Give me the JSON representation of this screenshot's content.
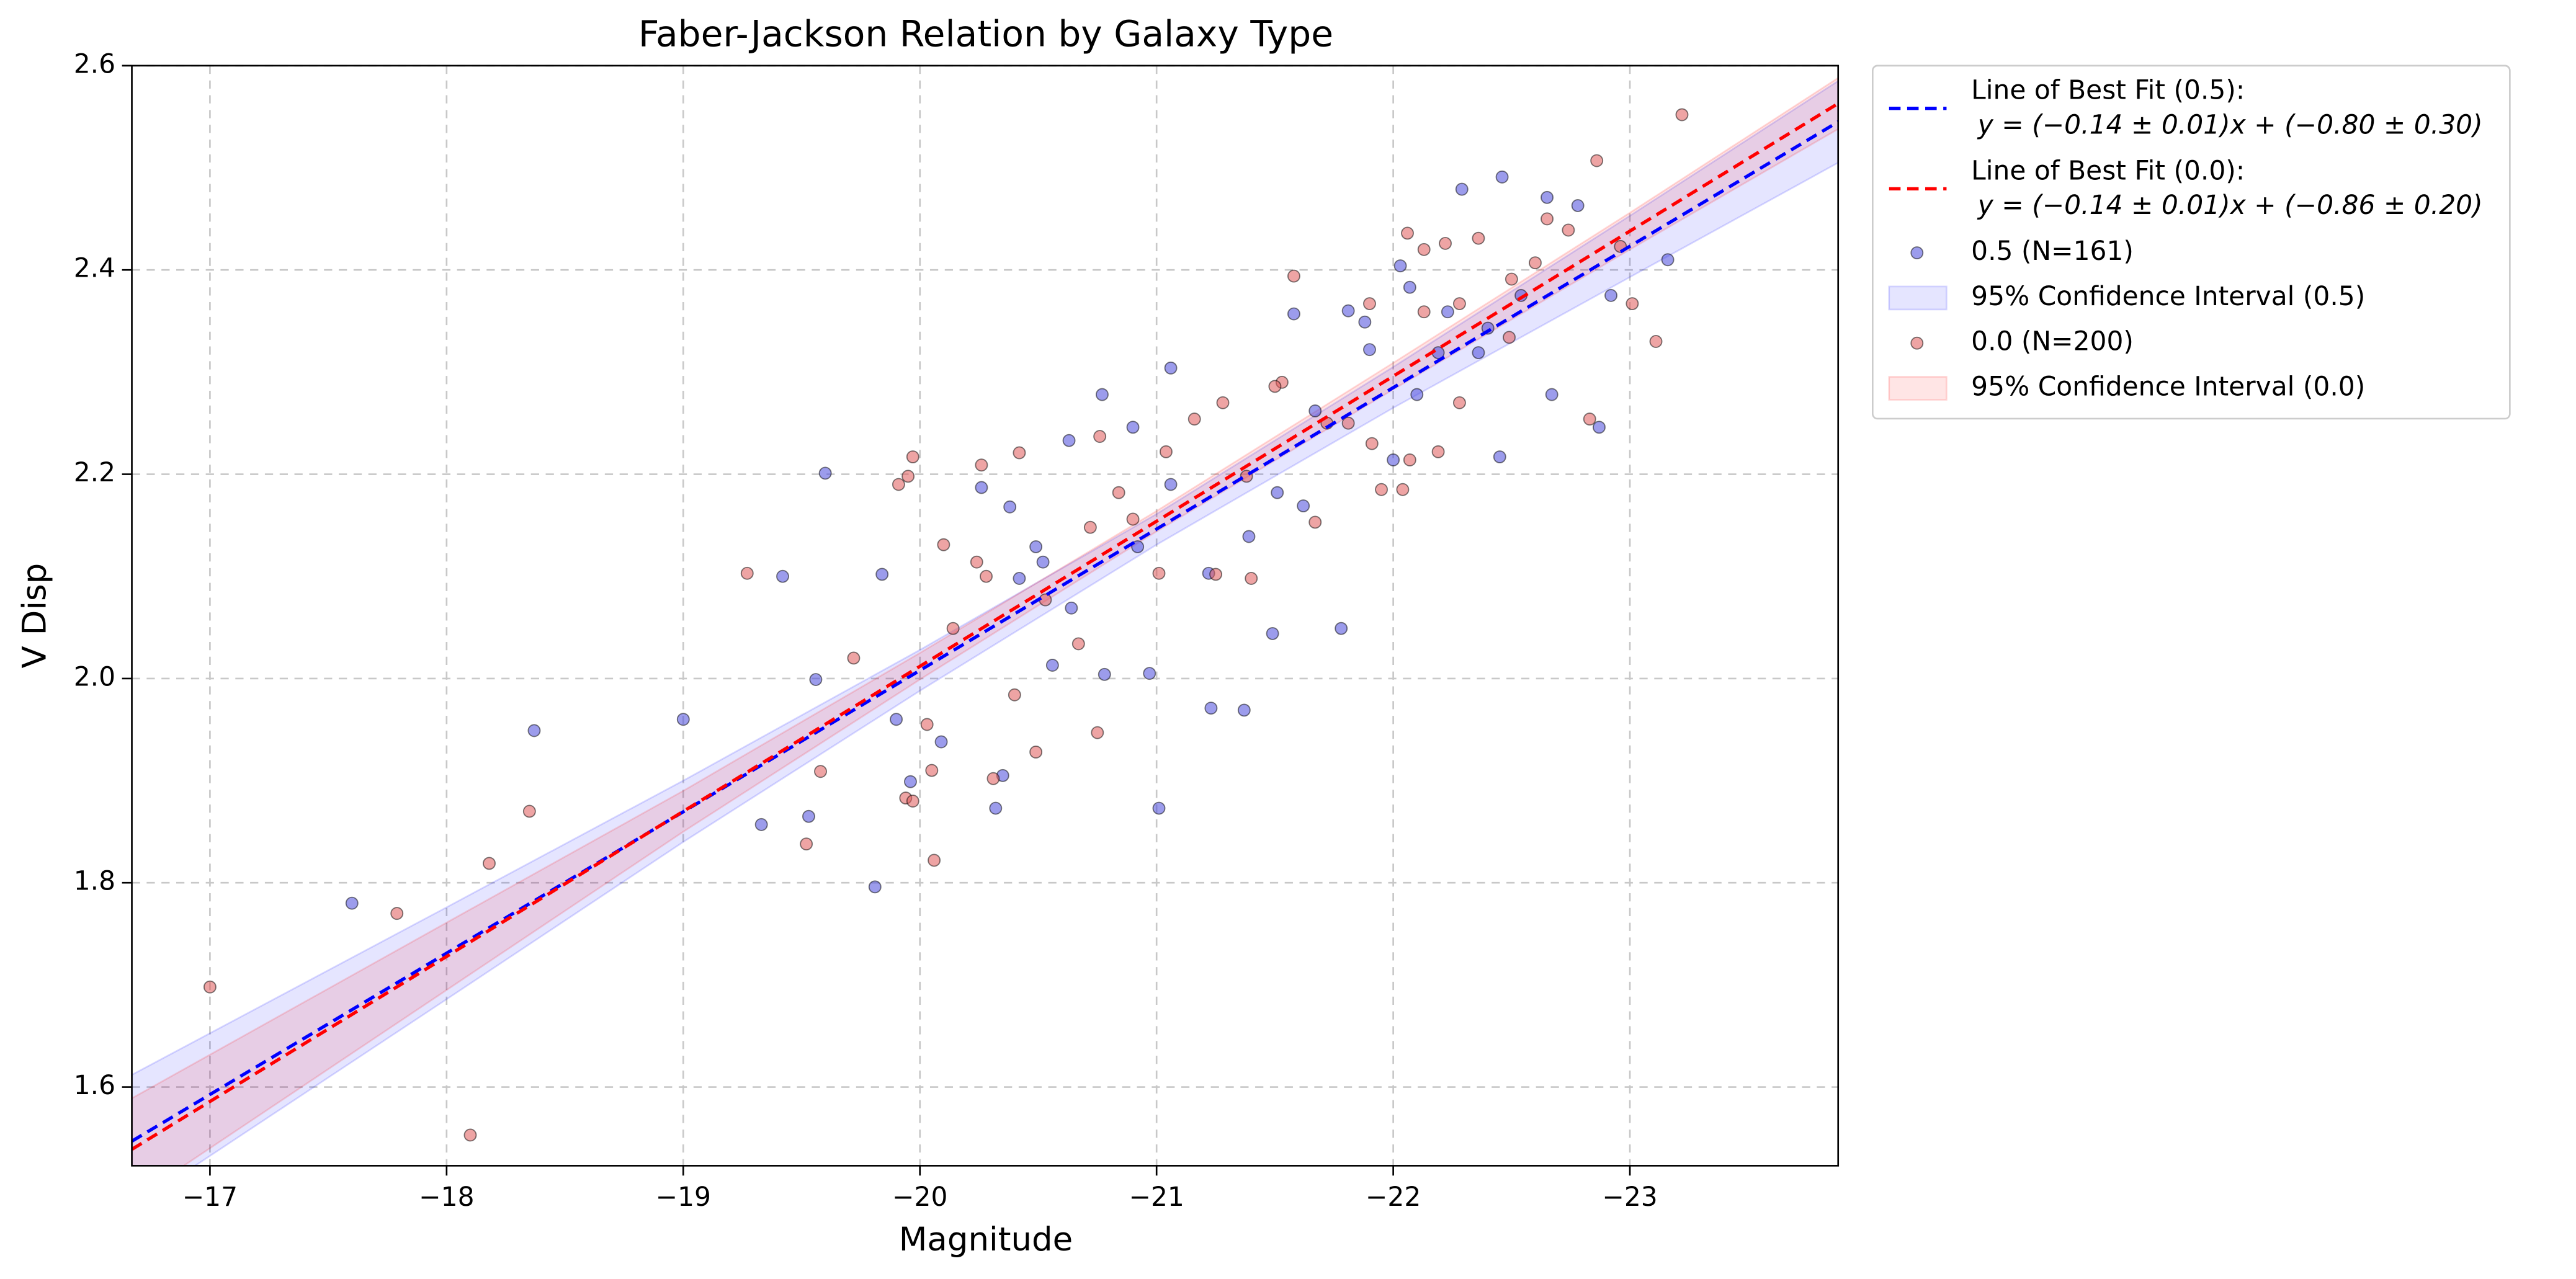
{
  "chart_data": {
    "type": "scatter",
    "title": "Faber-Jackson Relation by Galaxy Type",
    "xlabel": "Magnitude",
    "ylabel": "V Disp",
    "xlim": [
      -16.67,
      -23.88
    ],
    "ylim": [
      1.523,
      2.6
    ],
    "xticks": [
      {
        "value": -17,
        "label": "−17"
      },
      {
        "value": -18,
        "label": "−18"
      },
      {
        "value": -19,
        "label": "−19"
      },
      {
        "value": -20,
        "label": "−20"
      },
      {
        "value": -21,
        "label": "−21"
      },
      {
        "value": -22,
        "label": "−22"
      },
      {
        "value": -23,
        "label": "−23"
      }
    ],
    "yticks": [
      1.6,
      1.8,
      {
        "value": 2,
        "label": "2.0"
      },
      2.2,
      2.4,
      2.6
    ],
    "grid": true,
    "legend": "outside-upper-right",
    "series": [
      {
        "name": "Line of Best Fit (0.5):",
        "equation": "y = (−0.14 ± 0.01)x + (−0.80 ± 0.30)",
        "kind": "line",
        "color": "#0000ff",
        "x": [
          -16.67,
          -23.88
        ],
        "values": [
          1.547,
          2.545
        ]
      },
      {
        "name": "Line of Best Fit (0.0):",
        "equation": "y = (−0.14 ± 0.01)x + (−0.86 ± 0.20)",
        "kind": "line",
        "color": "#ff0000",
        "x": [
          -16.67,
          -23.88
        ],
        "values": [
          1.539,
          2.563
        ]
      },
      {
        "name": "0.5 (N=161)",
        "kind": "scatter",
        "color": "#4b4bdc",
        "x": [
          -17.6,
          -18.37,
          -19.0,
          -19.42,
          -19.33,
          -19.6,
          -19.56,
          -19.53,
          -19.84,
          -19.81,
          -19.9,
          -19.96,
          -20.09,
          -20.26,
          -20.32,
          -20.35,
          -20.38,
          -20.42,
          -20.49,
          -20.52,
          -20.56,
          -20.64,
          -20.63,
          -20.77,
          -20.78,
          -20.9,
          -20.97,
          -21.01,
          -21.06,
          -21.06,
          -21.22,
          -21.23,
          -21.37,
          -21.39,
          -21.49,
          -21.51,
          -21.58,
          -21.62,
          -21.78,
          -21.81,
          -21.9,
          -22.0,
          -22.03,
          -22.1,
          -22.19,
          -22.29,
          -22.36,
          -22.46,
          -22.45,
          -22.54,
          -22.65,
          -22.67,
          -22.78,
          -22.87,
          -22.92,
          -23.16,
          -22.07,
          -22.4,
          -21.88,
          -20.92,
          -21.67,
          -22.23
        ],
        "values": [
          1.78,
          1.949,
          1.96,
          2.1,
          1.857,
          2.201,
          1.999,
          1.865,
          2.102,
          1.796,
          1.96,
          1.899,
          1.938,
          2.187,
          1.873,
          1.905,
          2.168,
          2.098,
          2.129,
          2.114,
          2.013,
          2.069,
          2.233,
          2.278,
          2.004,
          2.246,
          2.005,
          1.873,
          2.304,
          2.19,
          2.103,
          1.971,
          1.969,
          2.139,
          2.044,
          2.182,
          2.357,
          2.169,
          2.049,
          2.36,
          2.322,
          2.214,
          2.404,
          2.278,
          2.319,
          2.479,
          2.319,
          2.491,
          2.217,
          2.375,
          2.471,
          2.278,
          2.463,
          2.246,
          2.375,
          2.41,
          2.383,
          2.343,
          2.349,
          2.129,
          2.262,
          2.359
        ]
      },
      {
        "name": "95% Confidence Interval (0.5)",
        "kind": "band",
        "color": "#0000ff",
        "x": [
          -16.67,
          -18,
          -19,
          -20,
          -21,
          -22,
          -23,
          -23.88
        ],
        "lower": [
          1.482,
          1.686,
          1.84,
          1.988,
          2.131,
          2.265,
          2.393,
          2.505
        ],
        "upper": [
          1.612,
          1.776,
          1.9,
          2.028,
          2.161,
          2.305,
          2.453,
          2.585
        ]
      },
      {
        "name": "0.0 (N=200)",
        "kind": "scatter",
        "color": "#e05a5a",
        "x": [
          -17.0,
          -18.1,
          -17.79,
          -18.18,
          -18.35,
          -19.27,
          -19.52,
          -19.58,
          -19.72,
          -19.91,
          -19.95,
          -19.97,
          -19.94,
          -19.97,
          -20.03,
          -20.05,
          -20.06,
          -20.1,
          -20.14,
          -20.24,
          -20.26,
          -20.28,
          -20.31,
          -20.4,
          -20.42,
          -20.49,
          -20.53,
          -20.67,
          -20.72,
          -20.75,
          -20.76,
          -20.84,
          -20.9,
          -21.01,
          -21.04,
          -21.16,
          -21.25,
          -21.28,
          -21.38,
          -21.4,
          -21.53,
          -21.58,
          -21.67,
          -21.72,
          -21.81,
          -21.91,
          -21.95,
          -22.06,
          -22.07,
          -22.13,
          -22.19,
          -22.22,
          -22.28,
          -22.36,
          -22.49,
          -22.6,
          -22.65,
          -22.74,
          -22.83,
          -22.86,
          -22.96,
          -23.01,
          -23.11,
          -23.22,
          -22.04,
          -21.9,
          -22.5,
          -21.5,
          -22.13,
          -22.28
        ],
        "values": [
          1.698,
          1.553,
          1.77,
          1.819,
          1.87,
          2.103,
          1.838,
          1.909,
          2.02,
          2.19,
          2.198,
          2.217,
          1.883,
          1.88,
          1.955,
          1.91,
          1.822,
          2.131,
          2.049,
          2.114,
          2.209,
          2.1,
          1.902,
          1.984,
          2.221,
          1.928,
          2.077,
          2.034,
          2.148,
          1.947,
          2.237,
          2.182,
          2.156,
          2.103,
          2.222,
          2.254,
          2.102,
          2.27,
          2.198,
          2.098,
          2.29,
          2.394,
          2.153,
          2.25,
          2.25,
          2.23,
          2.185,
          2.436,
          2.214,
          2.359,
          2.222,
          2.426,
          2.27,
          2.431,
          2.334,
          2.407,
          2.45,
          2.439,
          2.254,
          2.507,
          2.423,
          2.367,
          2.33,
          2.552,
          2.185,
          2.367,
          2.391,
          2.286,
          2.42,
          2.367
        ]
      },
      {
        "name": "95% Confidence Interval (0.0)",
        "kind": "band",
        "color": "#ff0000",
        "x": [
          -16.67,
          -18,
          -19,
          -20,
          -21,
          -22,
          -23,
          -23.88
        ],
        "lower": [
          1.489,
          1.695,
          1.85,
          1.999,
          2.144,
          2.283,
          2.42,
          2.538
        ],
        "upper": [
          1.589,
          1.761,
          1.89,
          2.025,
          2.164,
          2.309,
          2.456,
          2.588
        ]
      }
    ]
  }
}
